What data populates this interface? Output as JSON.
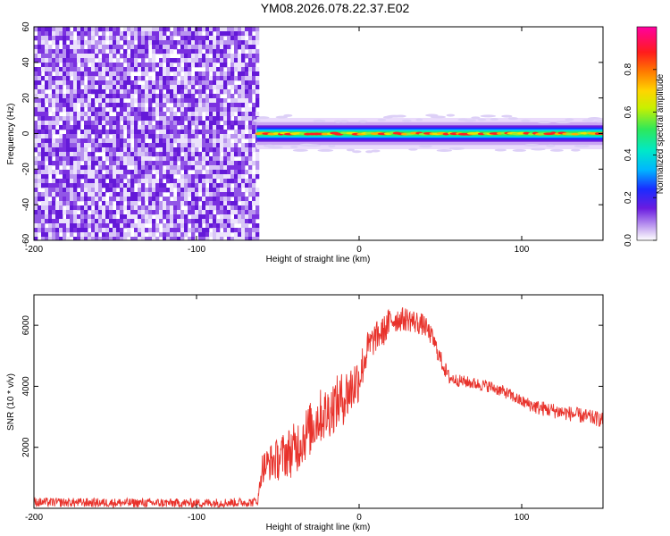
{
  "title": "YM08.2026.078.22.37.E02",
  "chart_data": [
    {
      "type": "heatmap",
      "name": "spectrogram",
      "xlabel": "Height of straight line (km)",
      "ylabel": "Frequency (Hz)",
      "xlim": [
        -200,
        150
      ],
      "ylim": [
        -60,
        60
      ],
      "xticks": [
        -200,
        -100,
        0,
        100
      ],
      "xtick_labels": [
        "-200",
        "-100",
        "0",
        "100"
      ],
      "yticks": [
        -60,
        -40,
        -20,
        0,
        20,
        40,
        60
      ],
      "ytick_labels": [
        "-60",
        "-40",
        "-20",
        "0",
        "20",
        "40",
        "60"
      ],
      "noise_region_x": [
        -200,
        -63
      ],
      "signal_band": {
        "x_start": -63,
        "x_end": 150,
        "center_freq_hz": 0,
        "half_width_hz": 4
      },
      "colorbar": {
        "label": "Normalized spectral amplitude",
        "range": [
          0.0,
          1.0
        ],
        "ticks": [
          0.0,
          0.2,
          0.4,
          0.6,
          0.8
        ],
        "tick_labels": [
          "0.0",
          "0.2",
          "0.4",
          "0.6",
          "0.8"
        ]
      }
    },
    {
      "type": "line",
      "name": "snr",
      "xlabel": "Height of straight line (km)",
      "ylabel": "SNR (10 * v/v)",
      "xlim": [
        -200,
        150
      ],
      "ylim": [
        0,
        7000
      ],
      "xticks": [
        -200,
        -100,
        0,
        100
      ],
      "xtick_labels": [
        "-200",
        "-100",
        "0",
        "100"
      ],
      "yticks": [
        2000,
        4000,
        6000
      ],
      "ytick_labels": [
        "2000",
        "4000",
        "6000"
      ],
      "color": "#e8322b",
      "series": [
        {
          "name": "SNR",
          "x": [
            -200,
            -150,
            -100,
            -65,
            -62,
            -60,
            -55,
            -50,
            -45,
            -40,
            -35,
            -30,
            -25,
            -20,
            -15,
            -10,
            -5,
            0,
            5,
            10,
            15,
            20,
            25,
            30,
            35,
            40,
            45,
            50,
            55,
            60,
            70,
            80,
            90,
            100,
            110,
            120,
            130,
            140,
            150
          ],
          "y": [
            200,
            180,
            170,
            200,
            300,
            1300,
            1500,
            1600,
            1800,
            1900,
            2300,
            2600,
            3000,
            3100,
            3400,
            3600,
            3900,
            4300,
            5200,
            5600,
            5800,
            6200,
            6200,
            6200,
            6100,
            6000,
            5600,
            4900,
            4300,
            4200,
            4100,
            4000,
            3800,
            3500,
            3300,
            3200,
            3100,
            3000,
            2900
          ],
          "noise_amplitude": [
            150,
            150,
            150,
            150,
            200,
            500,
            600,
            700,
            800,
            900,
            900,
            900,
            900,
            900,
            900,
            900,
            900,
            800,
            600,
            500,
            500,
            500,
            400,
            400,
            400,
            350,
            300,
            300,
            250,
            200,
            200,
            200,
            200,
            200,
            250,
            250,
            250,
            250,
            250
          ]
        }
      ]
    }
  ]
}
